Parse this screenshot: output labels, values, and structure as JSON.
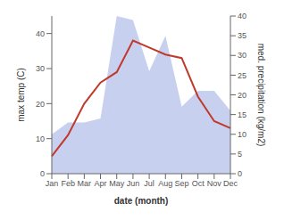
{
  "chart_data": {
    "type": "line",
    "categories": [
      "Jan",
      "Feb",
      "Mar",
      "Apr",
      "May",
      "Jun",
      "Jul",
      "Aug",
      "Sep",
      "Oct",
      "Nov",
      "Dec"
    ],
    "series": [
      {
        "type": "area",
        "axis": "y2",
        "color": "#c8d0f0",
        "values": [
          10,
          13,
          13,
          14,
          40,
          39,
          26,
          35,
          17,
          21,
          21,
          16
        ]
      },
      {
        "type": "line",
        "color": "#c0392b",
        "values": [
          5,
          11,
          20,
          26,
          29,
          38,
          36,
          34,
          33,
          22,
          15,
          13
        ]
      }
    ],
    "xlabel": "date (month)",
    "ylabel": "max temp (C)",
    "y2label": "med. precipitation (kg/m2)",
    "ylim": [
      0,
      45
    ],
    "yticks": [
      0,
      10,
      20,
      30,
      40
    ],
    "y2lim": [
      0,
      40
    ],
    "y2ticks": [
      0,
      5,
      10,
      15,
      20,
      25,
      30,
      35,
      40
    ],
    "grid": false
  }
}
